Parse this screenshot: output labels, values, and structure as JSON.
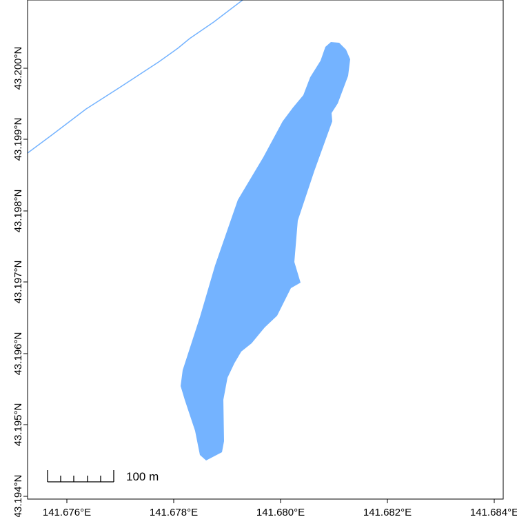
{
  "map": {
    "colors": {
      "water": "#74b3ff",
      "river_line": "#74b3ff",
      "frame": "#000000",
      "background": "#ffffff"
    },
    "x_axis": {
      "unit": "°E",
      "ticks": [
        "141.676°E",
        "141.678°E",
        "141.680°E",
        "141.682°E",
        "141.684°E"
      ]
    },
    "y_axis": {
      "unit": "°N",
      "ticks": [
        "43.194°N",
        "43.195°N",
        "43.196°N",
        "43.197°N",
        "43.198°N",
        "43.199°N",
        "43.200°N"
      ]
    },
    "scale_bar": {
      "label": "100 m",
      "distance_m": 100
    },
    "features": [
      {
        "name": "lake",
        "type": "polygon"
      },
      {
        "name": "river",
        "type": "line"
      }
    ]
  }
}
